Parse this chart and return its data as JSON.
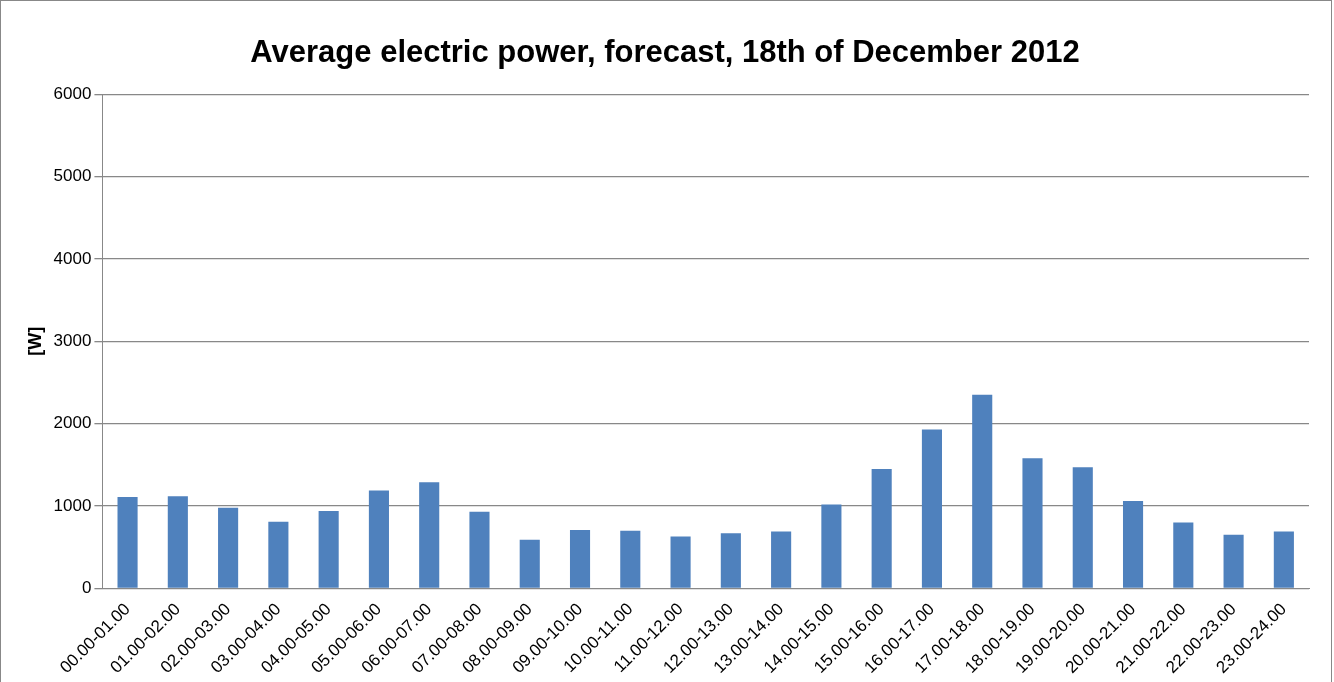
{
  "chart_data": {
    "type": "bar",
    "title": "Average electric power, forecast, 18th of December 2012",
    "ylabel": "[W]",
    "categories": [
      "00.00-01.00",
      "01.00-02.00",
      "02.00-03.00",
      "03.00-04.00",
      "04.00-05.00",
      "05.00-06.00",
      "06.00-07.00",
      "07.00-08.00",
      "08.00-09.00",
      "09.00-10.00",
      "10.00-11.00",
      "11.00-12.00",
      "12.00-13.00",
      "13.00-14.00",
      "14.00-15.00",
      "15.00-16.00",
      "16.00-17.00",
      "17.00-18.00",
      "18.00-19.00",
      "19.00-20.00",
      "20.00-21.00",
      "21.00-22.00",
      "22.00-23.00",
      "23.00-24.00"
    ],
    "values": [
      1110,
      1120,
      980,
      810,
      940,
      1190,
      1290,
      930,
      590,
      710,
      700,
      630,
      670,
      690,
      1020,
      1450,
      1930,
      2350,
      1580,
      1470,
      1060,
      800,
      650,
      690
    ],
    "color": "#4f81bd",
    "ylim": [
      0,
      6000
    ],
    "yticks": [
      0,
      1000,
      2000,
      3000,
      4000,
      5000,
      6000
    ],
    "grid": "y",
    "legend": false
  }
}
